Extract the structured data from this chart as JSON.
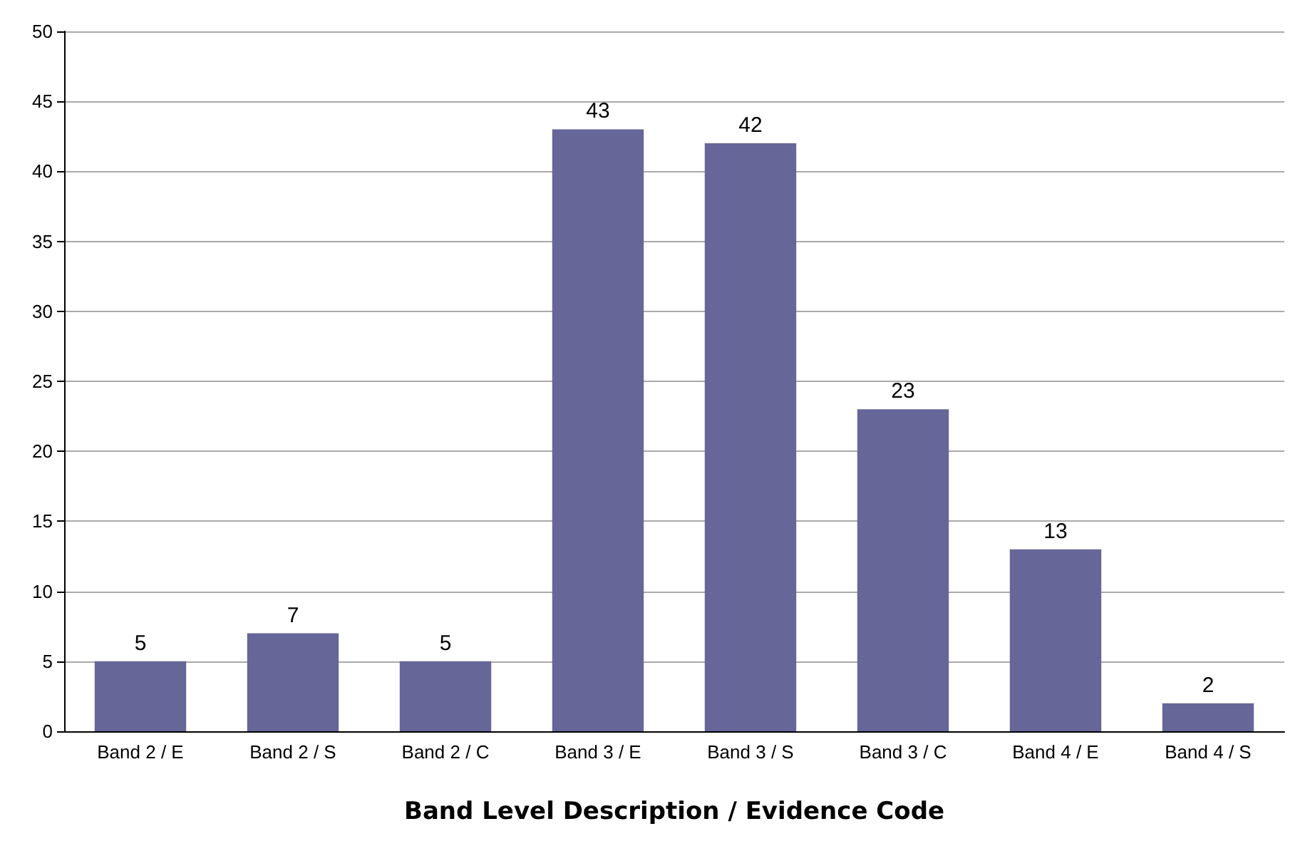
{
  "chart_data": {
    "type": "bar",
    "xlabel": "Band Level Description / Evidence Code",
    "categories": [
      "Band 2 / E",
      "Band 2 / S",
      "Band 2 / C",
      "Band 3 / E",
      "Band 3 / S",
      "Band 3 / C",
      "Band 4 / E",
      "Band 4 / S"
    ],
    "values": [
      5,
      7,
      5,
      43,
      42,
      23,
      13,
      2
    ],
    "color": "#666699",
    "ylim": [
      0,
      50
    ],
    "yticks": [
      0,
      5,
      10,
      15,
      20,
      25,
      30,
      35,
      40,
      45,
      50
    ],
    "grid": "y",
    "data_labels": true
  }
}
